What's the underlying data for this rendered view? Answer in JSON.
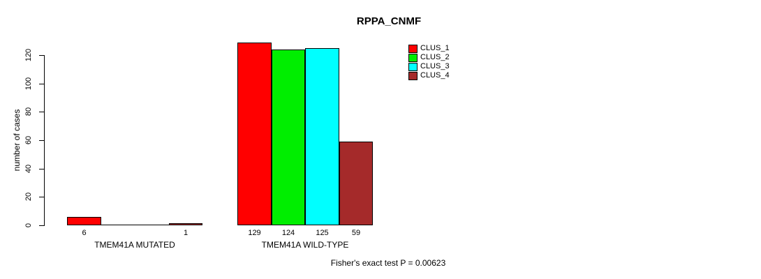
{
  "title": "RPPA_CNMF",
  "ylabel": "number of cases",
  "footer": "Fisher's exact test P = 0.00623",
  "chart_data": {
    "type": "bar",
    "title": "RPPA_CNMF",
    "xlabel": "",
    "ylabel": "number of cases",
    "ylim": [
      0,
      120
    ],
    "yticks": [
      0,
      20,
      40,
      60,
      80,
      100,
      120
    ],
    "grid": false,
    "legend_position": "top-right",
    "categories": [
      "TMEM41A MUTATED",
      "TMEM41A WILD-TYPE"
    ],
    "series": [
      {
        "name": "CLUS_1",
        "color": "#ff0000",
        "values": [
          6,
          129
        ]
      },
      {
        "name": "CLUS_2",
        "color": "#00ee00",
        "values": [
          0,
          124
        ]
      },
      {
        "name": "CLUS_3",
        "color": "#00ffff",
        "values": [
          0,
          125
        ]
      },
      {
        "name": "CLUS_4",
        "color": "#a52a2a",
        "values": [
          1,
          59
        ]
      }
    ],
    "bar_value_labels": [
      [
        6,
        0,
        0,
        1
      ],
      [
        129,
        124,
        125,
        59
      ]
    ],
    "annotation": "Fisher's exact test P = 0.00623"
  }
}
